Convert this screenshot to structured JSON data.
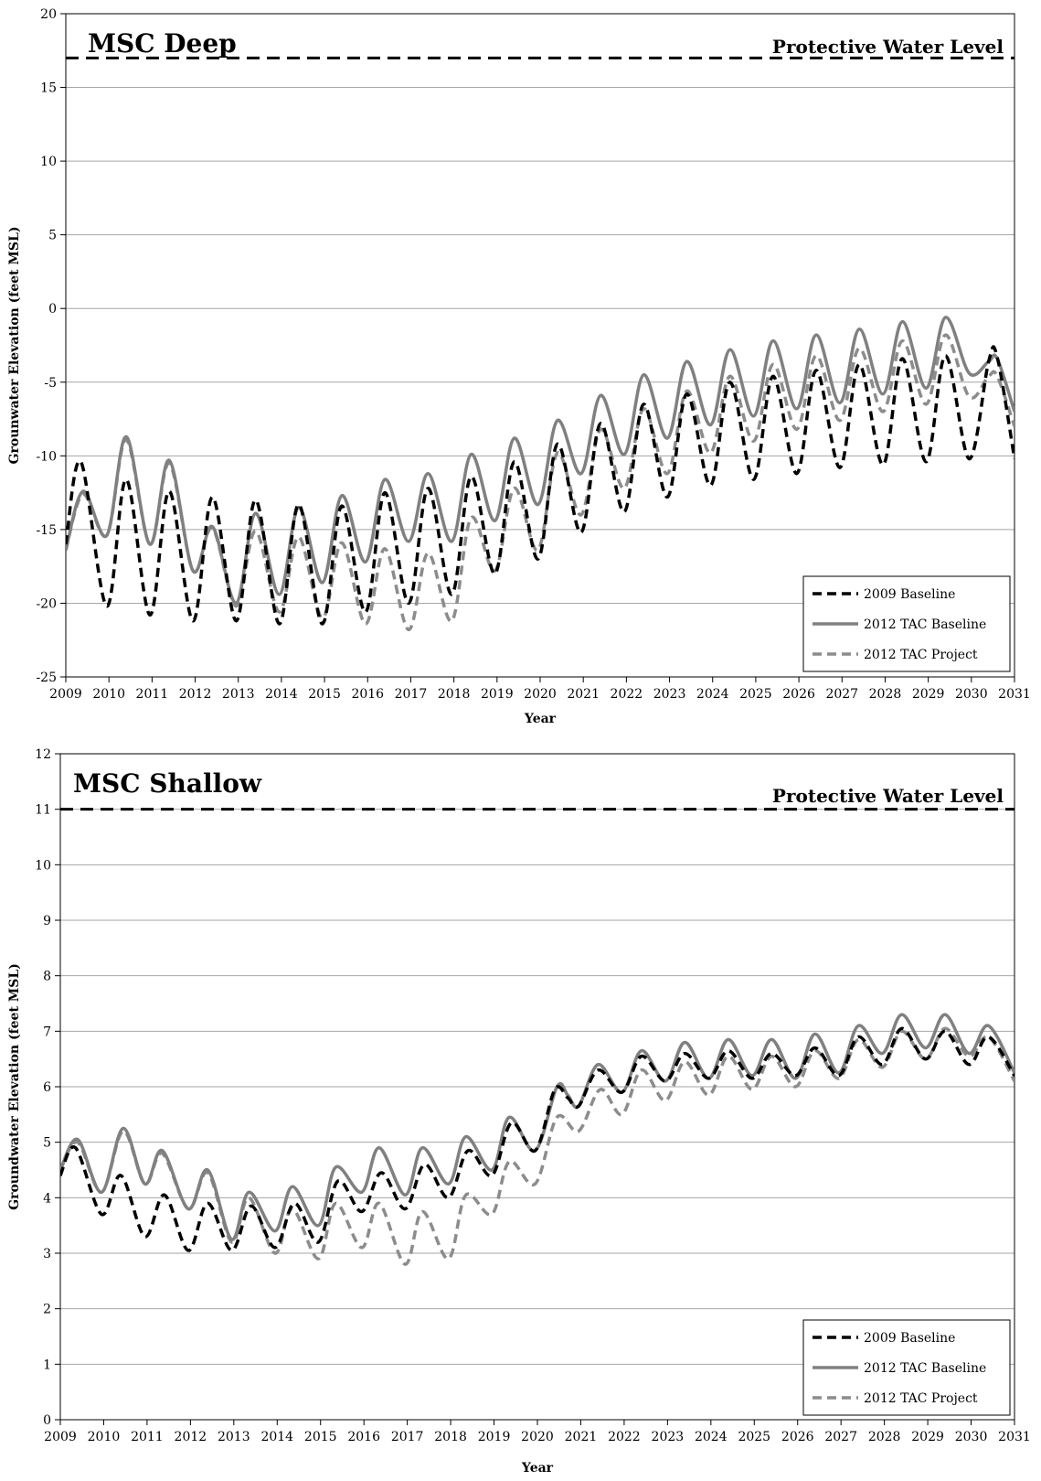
{
  "chart_data": [
    {
      "type": "line",
      "title": "MSC Deep",
      "xlabel": "Year",
      "ylabel": "Grounwater Elevation (feet MSL)",
      "xlim": [
        2009,
        2031
      ],
      "ylim": [
        -25,
        20
      ],
      "x_ticks": [
        "2009",
        "2010",
        "2011",
        "2012",
        "2013",
        "2014",
        "2015",
        "2016",
        "2017",
        "2018",
        "2019",
        "2020",
        "2021",
        "2022",
        "2023",
        "2024",
        "2025",
        "2026",
        "2027",
        "2028",
        "2029",
        "2030",
        "2031"
      ],
      "y_ticks": [
        "-25",
        "-20",
        "-15",
        "-10",
        "-5",
        "0",
        "5",
        "10",
        "15",
        "20"
      ],
      "grid": "horizontal",
      "legend_position": "bottom-right",
      "reference_line": {
        "label": "Protective Water Level",
        "value": 17,
        "color": "#000000"
      },
      "series": [
        {
          "name": "2009 Baseline",
          "color": "#000000",
          "style": "dashed",
          "x": [
            2009.0,
            2009.35,
            2009.95,
            2010.4,
            2010.95,
            2011.4,
            2011.95,
            2012.4,
            2012.95,
            2013.4,
            2013.95,
            2014.4,
            2014.95,
            2015.4,
            2015.95,
            2016.4,
            2016.95,
            2017.4,
            2017.95,
            2018.4,
            2018.95,
            2019.4,
            2019.95,
            2020.4,
            2020.95,
            2021.4,
            2021.95,
            2022.4,
            2022.95,
            2023.4,
            2023.95,
            2024.4,
            2024.95,
            2025.4,
            2025.95,
            2026.4,
            2026.95,
            2027.4,
            2027.95,
            2028.4,
            2028.95,
            2029.4,
            2029.95,
            2030.4,
            2030.6,
            2031.0
          ],
          "y": [
            -16,
            -10.4,
            -20.2,
            -11.6,
            -20.8,
            -12.4,
            -21.2,
            -12.8,
            -21.2,
            -13.0,
            -21.4,
            -13.3,
            -21.4,
            -13.4,
            -20.6,
            -12.5,
            -20.0,
            -12.2,
            -19.4,
            -11.4,
            -18.0,
            -10.4,
            -17.0,
            -9.2,
            -15.2,
            -7.8,
            -13.8,
            -6.5,
            -12.8,
            -5.8,
            -12.0,
            -5.0,
            -11.6,
            -4.6,
            -11.2,
            -4.2,
            -10.8,
            -3.8,
            -10.6,
            -3.4,
            -10.4,
            -3.2,
            -10.2,
            -3.6,
            -3.3,
            -10.2
          ]
        },
        {
          "name": "2012 TAC Baseline",
          "color": "#808080",
          "style": "solid",
          "x": [
            2009.0,
            2009.4,
            2009.95,
            2010.4,
            2010.95,
            2011.4,
            2011.95,
            2012.4,
            2012.95,
            2013.4,
            2013.95,
            2014.4,
            2014.95,
            2015.4,
            2015.95,
            2016.4,
            2016.95,
            2017.4,
            2017.95,
            2018.4,
            2018.95,
            2019.4,
            2019.95,
            2020.4,
            2020.95,
            2021.4,
            2021.95,
            2022.4,
            2022.95,
            2023.4,
            2023.95,
            2024.4,
            2024.95,
            2025.4,
            2025.95,
            2026.4,
            2026.95,
            2027.4,
            2027.95,
            2028.4,
            2028.95,
            2029.4,
            2029.95,
            2030.4,
            2030.6,
            2031.0
          ],
          "y": [
            -16.4,
            -12.4,
            -15.4,
            -8.7,
            -16.0,
            -10.3,
            -17.8,
            -14.8,
            -20.0,
            -13.9,
            -19.4,
            -13.5,
            -18.6,
            -12.7,
            -17.2,
            -11.6,
            -15.8,
            -11.2,
            -15.8,
            -9.9,
            -14.4,
            -8.8,
            -13.3,
            -7.6,
            -11.2,
            -5.9,
            -9.9,
            -4.5,
            -8.8,
            -3.6,
            -7.9,
            -2.8,
            -7.3,
            -2.2,
            -6.8,
            -1.8,
            -6.4,
            -1.4,
            -5.8,
            -0.9,
            -5.4,
            -0.6,
            -4.4,
            -3.6,
            -3.4,
            -7.0
          ]
        },
        {
          "name": "2012 TAC Project",
          "color": "#8c8c8c",
          "style": "dashed",
          "x": [
            2009.0,
            2009.4,
            2009.95,
            2010.4,
            2010.95,
            2011.4,
            2011.95,
            2012.4,
            2012.95,
            2013.4,
            2013.95,
            2014.4,
            2014.95,
            2015.4,
            2015.95,
            2016.4,
            2016.95,
            2017.4,
            2017.95,
            2018.4,
            2018.95,
            2019.4,
            2019.95,
            2020.4,
            2020.95,
            2021.4,
            2021.95,
            2022.4,
            2022.95,
            2023.4,
            2023.95,
            2024.4,
            2024.95,
            2025.4,
            2025.95,
            2026.4,
            2026.95,
            2027.4,
            2027.95,
            2028.4,
            2028.95,
            2029.4,
            2029.95,
            2030.4,
            2030.6,
            2031.0
          ],
          "y": [
            -16.4,
            -12.6,
            -15.4,
            -8.9,
            -16.0,
            -10.5,
            -17.8,
            -14.9,
            -20.2,
            -15.1,
            -20.6,
            -15.5,
            -21.0,
            -15.9,
            -21.4,
            -16.3,
            -21.8,
            -16.6,
            -21.2,
            -14.2,
            -17.8,
            -12.2,
            -16.4,
            -9.8,
            -14.0,
            -8.2,
            -12.2,
            -6.8,
            -11.2,
            -5.6,
            -9.8,
            -4.6,
            -9.0,
            -3.8,
            -8.2,
            -3.2,
            -7.6,
            -2.7,
            -7.0,
            -2.2,
            -6.5,
            -1.8,
            -6.0,
            -4.6,
            -4.6,
            -8.0
          ]
        }
      ]
    },
    {
      "type": "line",
      "title": "MSC Shallow",
      "xlabel": "Year",
      "ylabel": "Groundwater Elevation (feet MSL)",
      "xlim": [
        2009,
        2031
      ],
      "ylim": [
        0,
        12
      ],
      "x_ticks": [
        "2009",
        "2010",
        "2011",
        "2012",
        "2013",
        "2014",
        "2015",
        "2016",
        "2017",
        "2018",
        "2019",
        "2020",
        "2021",
        "2022",
        "2023",
        "2024",
        "2025",
        "2026",
        "2027",
        "2028",
        "2029",
        "2030",
        "2031"
      ],
      "y_ticks": [
        "0",
        "1",
        "2",
        "3",
        "4",
        "5",
        "6",
        "7",
        "8",
        "9",
        "10",
        "11",
        "12"
      ],
      "grid": "horizontal",
      "legend_position": "bottom-right",
      "reference_line": {
        "label": "Protective Water Level",
        "value": 11,
        "color": "#000000"
      },
      "series": [
        {
          "name": "2009 Baseline",
          "color": "#000000",
          "style": "dashed",
          "x": [
            2009.0,
            2009.35,
            2009.95,
            2010.4,
            2010.95,
            2011.4,
            2011.95,
            2012.4,
            2012.95,
            2013.4,
            2013.95,
            2014.4,
            2014.95,
            2015.4,
            2015.95,
            2016.4,
            2016.95,
            2017.4,
            2017.95,
            2018.4,
            2018.95,
            2019.4,
            2019.95,
            2020.4,
            2020.7,
            2020.95,
            2021.4,
            2021.95,
            2022.4,
            2022.95,
            2023.4,
            2023.95,
            2024.4,
            2024.95,
            2025.4,
            2025.95,
            2026.4,
            2026.95,
            2027.4,
            2027.95,
            2028.4,
            2028.95,
            2029.4,
            2029.95,
            2030.4,
            2031.0
          ],
          "y": [
            4.4,
            4.9,
            3.7,
            4.4,
            3.3,
            4.05,
            3.05,
            3.9,
            3.05,
            3.85,
            3.1,
            3.9,
            3.2,
            4.3,
            3.75,
            4.45,
            3.8,
            4.6,
            4.0,
            4.85,
            4.4,
            5.35,
            4.85,
            5.95,
            5.8,
            5.65,
            6.3,
            5.9,
            6.55,
            6.1,
            6.6,
            6.15,
            6.65,
            6.15,
            6.6,
            6.2,
            6.7,
            6.2,
            6.9,
            6.4,
            7.05,
            6.5,
            7.0,
            6.4,
            6.9,
            6.2
          ]
        },
        {
          "name": "2012 TAC Baseline",
          "color": "#808080",
          "style": "solid",
          "x": [
            2009.0,
            2009.4,
            2009.95,
            2010.45,
            2010.95,
            2011.35,
            2011.95,
            2012.4,
            2012.95,
            2013.35,
            2013.95,
            2014.35,
            2014.95,
            2015.35,
            2015.95,
            2016.35,
            2016.95,
            2017.35,
            2017.95,
            2018.35,
            2018.95,
            2019.35,
            2019.95,
            2020.45,
            2020.7,
            2020.95,
            2021.4,
            2021.95,
            2022.4,
            2022.95,
            2023.4,
            2023.95,
            2024.4,
            2024.95,
            2025.4,
            2025.95,
            2026.4,
            2026.95,
            2027.4,
            2027.95,
            2028.4,
            2028.95,
            2029.4,
            2029.95,
            2030.4,
            2031.0
          ],
          "y": [
            4.5,
            5.05,
            4.1,
            5.25,
            4.25,
            4.85,
            3.8,
            4.5,
            3.25,
            4.1,
            3.4,
            4.2,
            3.5,
            4.55,
            4.1,
            4.9,
            4.05,
            4.9,
            4.25,
            5.1,
            4.5,
            5.45,
            4.85,
            6.0,
            5.85,
            5.65,
            6.4,
            5.9,
            6.65,
            6.1,
            6.8,
            6.15,
            6.85,
            6.2,
            6.85,
            6.15,
            6.95,
            6.25,
            7.1,
            6.6,
            7.3,
            6.7,
            7.3,
            6.6,
            7.1,
            6.25
          ]
        },
        {
          "name": "2012 TAC Project",
          "color": "#8c8c8c",
          "style": "dashed",
          "x": [
            2009.0,
            2009.4,
            2009.95,
            2010.45,
            2010.95,
            2011.35,
            2011.95,
            2012.4,
            2012.95,
            2013.35,
            2013.95,
            2014.35,
            2014.95,
            2015.35,
            2015.95,
            2016.35,
            2016.95,
            2017.35,
            2017.95,
            2018.35,
            2018.95,
            2019.35,
            2019.95,
            2020.45,
            2020.95,
            2021.45,
            2021.95,
            2022.4,
            2022.95,
            2023.4,
            2023.95,
            2024.4,
            2024.95,
            2025.4,
            2025.95,
            2026.4,
            2026.95,
            2027.4,
            2027.95,
            2028.4,
            2028.95,
            2029.4,
            2029.95,
            2030.4,
            2031.0
          ],
          "y": [
            4.5,
            5.0,
            4.1,
            5.2,
            4.25,
            4.8,
            3.8,
            4.45,
            3.2,
            4.0,
            3.0,
            3.8,
            2.9,
            3.9,
            3.1,
            3.9,
            2.8,
            3.75,
            2.9,
            4.05,
            3.7,
            4.65,
            4.25,
            5.45,
            5.2,
            5.95,
            5.5,
            6.3,
            5.75,
            6.45,
            5.85,
            6.55,
            5.95,
            6.55,
            6.0,
            6.65,
            6.15,
            6.85,
            6.35,
            7.0,
            6.5,
            7.05,
            6.55,
            6.9,
            6.1
          ]
        }
      ]
    }
  ]
}
